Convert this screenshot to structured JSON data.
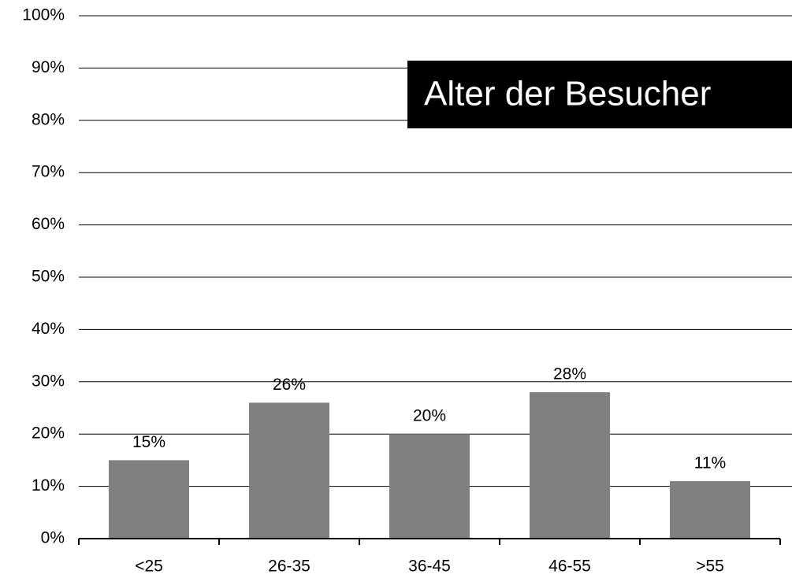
{
  "chart_data": {
    "type": "bar",
    "title": "Alter der Besucher",
    "categories": [
      "<25",
      "26-35",
      "36-45",
      "46-55",
      ">55"
    ],
    "values": [
      15,
      26,
      20,
      28,
      11
    ],
    "value_labels": [
      "15%",
      "26%",
      "20%",
      "28%",
      "11%"
    ],
    "color": "#808080",
    "ylim": [
      0,
      100
    ],
    "yticks": [
      {
        "value": 0,
        "label": "0%"
      },
      {
        "value": 10,
        "label": "10%"
      },
      {
        "value": 20,
        "label": "20%"
      },
      {
        "value": 30,
        "label": "30%"
      },
      {
        "value": 40,
        "label": "40%"
      },
      {
        "value": 50,
        "label": "50%"
      },
      {
        "value": 60,
        "label": "60%"
      },
      {
        "value": 70,
        "label": "70%"
      },
      {
        "value": 80,
        "label": "80%"
      },
      {
        "value": 90,
        "label": "90%"
      },
      {
        "value": 100,
        "label": "100%"
      }
    ],
    "grid": true
  }
}
